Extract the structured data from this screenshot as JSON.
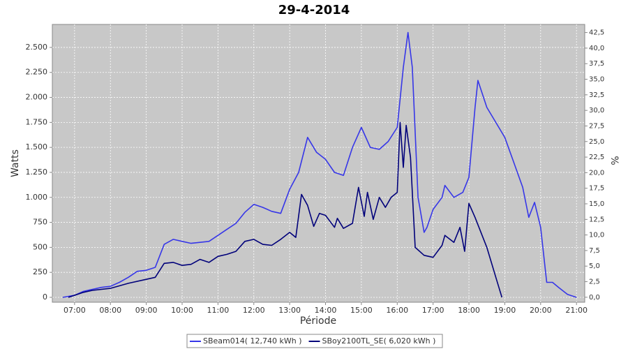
{
  "chart_data": {
    "type": "line",
    "title": "29-4-2014",
    "x_label": "Période",
    "y_label": "Watts",
    "y2_label": "%",
    "xlim": [
      6.38,
      21.23
    ],
    "xticks": [
      {
        "value": 7,
        "label": "07:00"
      },
      {
        "value": 8,
        "label": "08:00"
      },
      {
        "value": 9,
        "label": "09:00"
      },
      {
        "value": 10,
        "label": "10:00"
      },
      {
        "value": 11,
        "label": "11:00"
      },
      {
        "value": 12,
        "label": "12:00"
      },
      {
        "value": 13,
        "label": "13:00"
      },
      {
        "value": 14,
        "label": "14:00"
      },
      {
        "value": 15,
        "label": "15:00"
      },
      {
        "value": 16,
        "label": "16:00"
      },
      {
        "value": 17,
        "label": "17:00"
      },
      {
        "value": 18,
        "label": "18:00"
      },
      {
        "value": 19,
        "label": "19:00"
      },
      {
        "value": 20,
        "label": "20:00"
      },
      {
        "value": 21,
        "label": "21:00"
      }
    ],
    "ylim": [
      -49,
      2730
    ],
    "yticks": [
      0,
      250,
      500,
      750,
      {
        "value": 1000,
        "label": "1.000"
      },
      {
        "value": 1250,
        "label": "1.250"
      },
      {
        "value": 1500,
        "label": "1.500"
      },
      {
        "value": 1750,
        "label": "1.750"
      },
      {
        "value": 2000,
        "label": "2.000"
      },
      {
        "value": 2250,
        "label": "2.250"
      },
      {
        "value": 2500,
        "label": "2.500"
      }
    ],
    "y2lim": [
      -0.8,
      43.8
    ],
    "y2ticks": [
      {
        "value": 0,
        "label": "0,0"
      },
      {
        "value": 2.5,
        "label": "2,5"
      },
      {
        "value": 5,
        "label": "5,0"
      },
      {
        "value": 7.5,
        "label": "7,5"
      },
      {
        "value": 10,
        "label": "10,0"
      },
      {
        "value": 12.5,
        "label": "12,5"
      },
      {
        "value": 15,
        "label": "15,0"
      },
      {
        "value": 17.5,
        "label": "17,5"
      },
      {
        "value": 20,
        "label": "20,0"
      },
      {
        "value": 22.5,
        "label": "22,5"
      },
      {
        "value": 25,
        "label": "25,0"
      },
      {
        "value": 27.5,
        "label": "27,5"
      },
      {
        "value": 30,
        "label": "30,0"
      },
      {
        "value": 32.5,
        "label": "32,5"
      },
      {
        "value": 35,
        "label": "35,0"
      },
      {
        "value": 37.5,
        "label": "37,5"
      },
      {
        "value": 40,
        "label": "40,0"
      },
      {
        "value": 42.5,
        "label": "42,5"
      }
    ],
    "grid": true,
    "legend": "bottom",
    "series": [
      {
        "name": "SBeam014( 12,740 kWh )",
        "color": "#3636e8",
        "x": [
          6.67,
          7,
          7.25,
          7.5,
          7.75,
          8,
          8.25,
          8.5,
          8.75,
          9,
          9.25,
          9.5,
          9.75,
          10,
          10.25,
          10.5,
          10.75,
          11,
          11.25,
          11.5,
          11.75,
          12,
          12.25,
          12.5,
          12.75,
          13,
          13.25,
          13.5,
          13.75,
          14,
          14.25,
          14.5,
          14.75,
          15,
          15.25,
          15.5,
          15.75,
          16,
          16.17,
          16.3,
          16.42,
          16.58,
          16.75,
          16.83,
          17,
          17.25,
          17.33,
          17.58,
          17.83,
          18,
          18.17,
          18.25,
          18.5,
          18.75,
          19,
          19.25,
          19.5,
          19.67,
          19.83,
          20,
          20.17,
          20.33,
          20.5,
          20.75,
          21
        ],
        "values": [
          0,
          20,
          60,
          80,
          100,
          110,
          150,
          200,
          260,
          270,
          300,
          530,
          580,
          560,
          540,
          550,
          560,
          620,
          680,
          740,
          850,
          930,
          900,
          860,
          840,
          1080,
          1250,
          1600,
          1450,
          1380,
          1250,
          1220,
          1500,
          1700,
          1500,
          1480,
          1560,
          1700,
          2300,
          2650,
          2300,
          1000,
          650,
          700,
          880,
          1000,
          1120,
          1000,
          1050,
          1200,
          1900,
          2170,
          1900,
          1750,
          1600,
          1350,
          1100,
          800,
          950,
          700,
          150,
          150,
          100,
          30,
          0
        ]
      },
      {
        "name": "SBoy2100TL_SE( 6,020 kWh )",
        "color": "#00007a",
        "x": [
          6.83,
          7.25,
          7.5,
          8,
          8.5,
          9,
          9.25,
          9.5,
          9.75,
          10,
          10.25,
          10.5,
          10.75,
          11,
          11.25,
          11.5,
          11.75,
          12,
          12.25,
          12.5,
          12.75,
          13,
          13.17,
          13.33,
          13.5,
          13.67,
          13.83,
          14,
          14.25,
          14.33,
          14.5,
          14.75,
          14.92,
          15.08,
          15.17,
          15.33,
          15.5,
          15.67,
          15.83,
          16,
          16.08,
          16.17,
          16.25,
          16.37,
          16.5,
          16.75,
          17,
          17.25,
          17.33,
          17.58,
          17.75,
          17.88,
          18,
          18.17,
          18.5,
          18.75,
          18.92
        ],
        "values": [
          0,
          50,
          70,
          90,
          140,
          180,
          200,
          340,
          350,
          320,
          330,
          380,
          350,
          410,
          430,
          460,
          560,
          580,
          530,
          520,
          580,
          650,
          600,
          1030,
          920,
          710,
          840,
          820,
          700,
          790,
          690,
          740,
          1100,
          810,
          1050,
          780,
          1000,
          900,
          1000,
          1050,
          1750,
          1300,
          1720,
          1400,
          500,
          420,
          400,
          520,
          620,
          550,
          700,
          460,
          940,
          800,
          500,
          200,
          0
        ]
      }
    ]
  }
}
